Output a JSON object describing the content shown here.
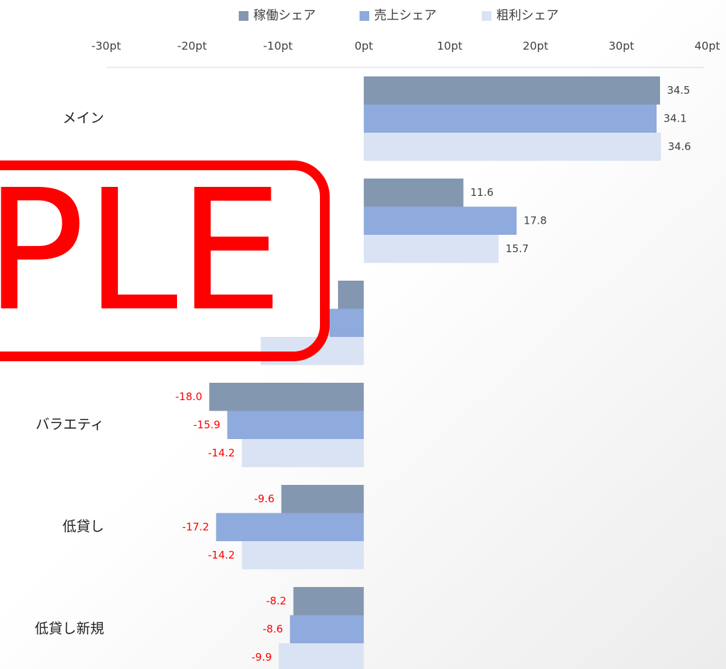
{
  "chart_data": {
    "type": "barh",
    "watermark": "SAMPLE",
    "categories": [
      "メイン",
      null,
      null,
      "バラエティ",
      "低貸し",
      "低貸し新規"
    ],
    "series": [
      {
        "name": "稼働シェア",
        "color": "#8497b0",
        "values": [
          34.5,
          11.6,
          -3.0,
          -18.0,
          -9.6,
          -8.2
        ],
        "value_labels": [
          "34.5",
          "11.6",
          null,
          "-18.0",
          "-9.6",
          "-8.2"
        ]
      },
      {
        "name": "売上シェア",
        "color": "#8faadc",
        "values": [
          34.1,
          17.8,
          -4.0,
          -15.9,
          -17.2,
          -8.6
        ],
        "value_labels": [
          "34.1",
          "17.8",
          null,
          "-15.9",
          "-17.2",
          "-8.6"
        ]
      },
      {
        "name": "粗利シェア",
        "color": "#dae3f3",
        "values": [
          34.6,
          15.7,
          -12.0,
          -14.2,
          -14.2,
          -9.9
        ],
        "value_labels": [
          "34.6",
          "15.7",
          null,
          "-14.2",
          "-14.2",
          "-9.9"
        ]
      }
    ],
    "xlim": [
      -30,
      40
    ],
    "xticks": [
      {
        "value": -30,
        "label": "-30pt"
      },
      {
        "value": -20,
        "label": "-20pt"
      },
      {
        "value": -10,
        "label": "-10pt"
      },
      {
        "value": 0,
        "label": "0pt"
      },
      {
        "value": 10,
        "label": "10pt"
      },
      {
        "value": 20,
        "label": "20pt"
      },
      {
        "value": 30,
        "label": "30pt"
      },
      {
        "value": 40,
        "label": "40pt"
      }
    ],
    "negative_label_color": "#ff0000",
    "legend": "top"
  }
}
